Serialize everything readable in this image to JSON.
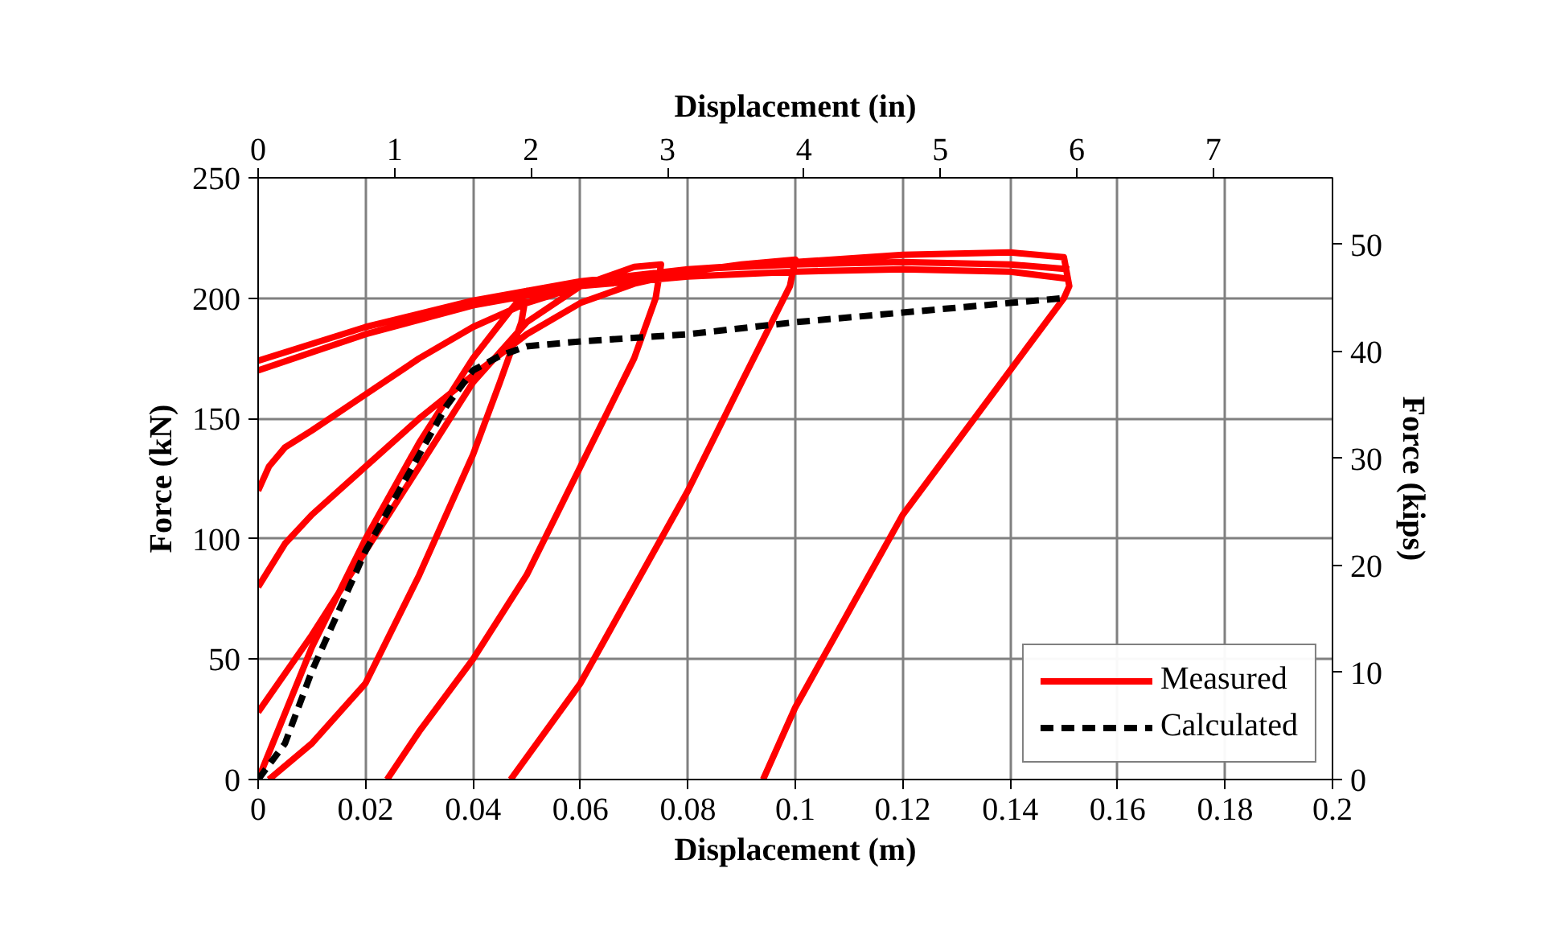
{
  "chart_data": {
    "type": "line",
    "xlabel": "Displacement (m)",
    "ylabel": "Force (kN)",
    "x2label": "Displacement (in)",
    "y2label": "Force (kips)",
    "xlim": [
      0,
      0.2
    ],
    "xticks": [
      0,
      0.02,
      0.04,
      0.06,
      0.08,
      0.1,
      0.12,
      0.14,
      0.16,
      0.18,
      0.2
    ],
    "ylim": [
      0,
      250
    ],
    "yticks": [
      0,
      50,
      100,
      150,
      200,
      250
    ],
    "x2lim": [
      0,
      7.874
    ],
    "x2ticks": [
      0,
      1,
      2,
      3,
      4,
      5,
      6,
      7
    ],
    "y2lim": [
      0,
      56.2
    ],
    "y2ticks": [
      0,
      10,
      20,
      30,
      40,
      50
    ],
    "grid": true,
    "legend": "bottom right",
    "marker": "none",
    "series": [
      {
        "name": "Measured",
        "color": "#ff0000",
        "line_style": "solid",
        "x": [
          0,
          0.01,
          0.02,
          0.03,
          0.04,
          0.047,
          0.05,
          0.049,
          0.045,
          0.04,
          0.03,
          0.02,
          0.01,
          0.002,
          null,
          0,
          0.01,
          0.02,
          0.03,
          0.04,
          0.05,
          0.06,
          0.07,
          0.075,
          0.074,
          0.07,
          0.06,
          0.05,
          0.04,
          0.03,
          0.024,
          null,
          0,
          0.005,
          0.01,
          0.02,
          0.03,
          0.04,
          0.05,
          0.06,
          0.07,
          0.08,
          0.09,
          0.1,
          0.099,
          0.09,
          0.08,
          0.07,
          0.06,
          0.047,
          null,
          0,
          0.002,
          0.005,
          0.01,
          0.02,
          0.03,
          0.04,
          0.05,
          0.06,
          0.08,
          0.1,
          0.12,
          0.14,
          0.15,
          0.151,
          0.15,
          0.14,
          0.13,
          0.12,
          0.11,
          0.1,
          0.094,
          null,
          0,
          0.02,
          0.04,
          0.06,
          0.08,
          0.1,
          0.12,
          0.14,
          0.151,
          null,
          0,
          0.02,
          0.04,
          0.06,
          0.08,
          0.1,
          0.12,
          0.14,
          0.151
        ],
        "values": [
          0,
          55,
          100,
          140,
          175,
          195,
          203,
          190,
          165,
          135,
          85,
          40,
          15,
          0,
          null,
          28,
          60,
          95,
          130,
          165,
          190,
          205,
          213,
          214,
          200,
          175,
          130,
          85,
          50,
          20,
          0,
          null,
          80,
          98,
          110,
          130,
          150,
          168,
          185,
          198,
          206,
          211,
          214,
          216,
          205,
          165,
          120,
          80,
          40,
          0,
          null,
          120,
          130,
          138,
          145,
          160,
          175,
          188,
          198,
          205,
          212,
          215,
          218,
          219,
          217,
          205,
          200,
          170,
          140,
          110,
          70,
          30,
          0,
          null,
          170,
          185,
          197,
          205,
          209,
          211,
          212,
          211,
          208,
          null,
          174,
          188,
          199,
          207,
          212,
          214,
          215,
          214,
          212
        ]
      },
      {
        "name": "Calculated",
        "color": "#000000",
        "line_style": "dashed",
        "x": [
          0,
          0.005,
          0.01,
          0.02,
          0.03,
          0.035,
          0.04,
          0.045,
          0.05,
          0.06,
          0.08,
          0.1,
          0.12,
          0.14,
          0.15
        ],
        "values": [
          0,
          15,
          45,
          95,
          135,
          155,
          170,
          176,
          180,
          182,
          185,
          190,
          194,
          198,
          200
        ]
      }
    ]
  }
}
